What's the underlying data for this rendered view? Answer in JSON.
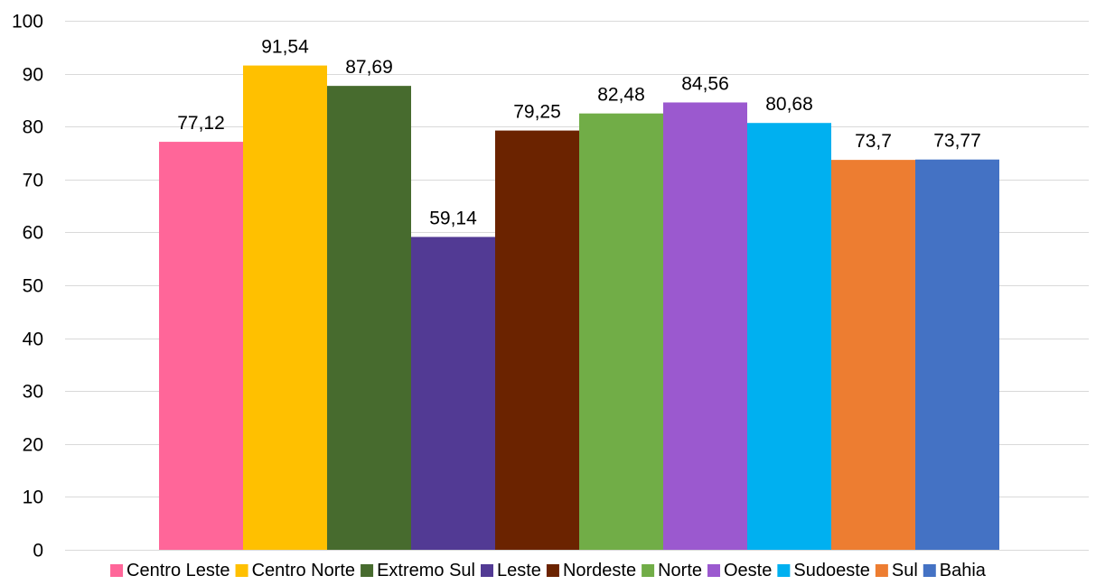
{
  "chart_data": {
    "type": "bar",
    "categories": [
      "Centro Leste",
      "Centro Norte",
      "Extremo Sul",
      "Leste",
      "Nordeste",
      "Norte",
      "Oeste",
      "Sudoeste",
      "Sul",
      "Bahia"
    ],
    "series": [
      {
        "values": [
          77.12,
          91.54,
          87.69,
          59.14,
          79.25,
          82.48,
          84.56,
          80.68,
          73.7,
          73.77
        ],
        "data_labels": [
          "77,12",
          "91,54",
          "87,69",
          "59,14",
          "79,25",
          "82,48",
          "84,56",
          "80,68",
          "73,7",
          "73,77"
        ],
        "colors": [
          "#ff6699",
          "#ffc000",
          "#476b2e",
          "#523a94",
          "#6b2300",
          "#71ad47",
          "#9b59cf",
          "#00b0f0",
          "#ed7d31",
          "#4472c4"
        ]
      }
    ],
    "title": "",
    "xlabel": "",
    "ylabel": "",
    "ylim": [
      0,
      100
    ],
    "yticks": [
      0,
      10,
      20,
      30,
      40,
      50,
      60,
      70,
      80,
      90,
      100
    ],
    "grid": true,
    "legend": "bottom",
    "legend_entries": [
      "Centro Leste",
      "Centro Norte",
      "Extremo Sul",
      "Leste",
      "Nordeste",
      "Norte",
      "Oeste",
      "Sudoeste",
      "Sul",
      "Bahia"
    ]
  }
}
